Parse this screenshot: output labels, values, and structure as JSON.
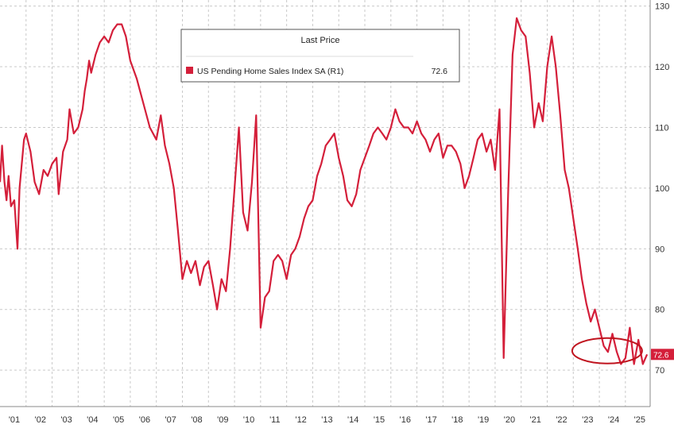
{
  "chart_data": {
    "type": "line",
    "legend": {
      "title": "Last Price",
      "placement": "top-center",
      "entries": [
        {
          "name": "US Pending Home Sales Index SA  (R1)",
          "value": "72.6",
          "color": "#d41f3a"
        }
      ]
    },
    "x_ticks": [
      "'01",
      "'02",
      "'03",
      "'04",
      "'05",
      "'06",
      "'07",
      "'08",
      "'09",
      "'10",
      "'11",
      "'12",
      "'13",
      "'14",
      "'15",
      "'16",
      "'17",
      "'18",
      "'19",
      "'20",
      "'21",
      "'22",
      "'23",
      "'24",
      "'25"
    ],
    "xlim": [
      2001.0,
      2025.95
    ],
    "y_ticks": [
      "70",
      "80",
      "90",
      "100",
      "110",
      "120",
      "130"
    ],
    "ylim": [
      64,
      131
    ],
    "y_axis_side": "right",
    "grid": true,
    "last_value_label": "72.6",
    "highlight": "ellipse around 2023-2025 lows",
    "series": [
      {
        "name": "US Pending Home Sales Index SA  (R1)",
        "color": "#d41f3a",
        "points": [
          [
            2001.0,
            101.0
          ],
          [
            2001.08,
            107.0
          ],
          [
            2001.17,
            101.0
          ],
          [
            2001.25,
            98.0
          ],
          [
            2001.33,
            102.0
          ],
          [
            2001.42,
            97.0
          ],
          [
            2001.55,
            98.0
          ],
          [
            2001.67,
            90.0
          ],
          [
            2001.75,
            100.0
          ],
          [
            2001.92,
            108.0
          ],
          [
            2002.0,
            109.0
          ],
          [
            2002.17,
            106.0
          ],
          [
            2002.33,
            101.0
          ],
          [
            2002.5,
            99.0
          ],
          [
            2002.67,
            103.0
          ],
          [
            2002.83,
            102.0
          ],
          [
            2003.0,
            104.0
          ],
          [
            2003.17,
            105.0
          ],
          [
            2003.25,
            99.0
          ],
          [
            2003.42,
            106.0
          ],
          [
            2003.58,
            108.0
          ],
          [
            2003.67,
            113.0
          ],
          [
            2003.83,
            109.0
          ],
          [
            2004.0,
            110.0
          ],
          [
            2004.17,
            113.0
          ],
          [
            2004.25,
            116.0
          ],
          [
            2004.33,
            118.0
          ],
          [
            2004.42,
            121.0
          ],
          [
            2004.5,
            119.0
          ],
          [
            2004.67,
            122.0
          ],
          [
            2004.83,
            124.0
          ],
          [
            2005.0,
            125.0
          ],
          [
            2005.17,
            124.0
          ],
          [
            2005.33,
            126.0
          ],
          [
            2005.5,
            127.0
          ],
          [
            2005.67,
            127.0
          ],
          [
            2005.83,
            125.0
          ],
          [
            2006.0,
            121.0
          ],
          [
            2006.25,
            118.0
          ],
          [
            2006.5,
            114.0
          ],
          [
            2006.75,
            110.0
          ],
          [
            2007.0,
            108.0
          ],
          [
            2007.17,
            112.0
          ],
          [
            2007.33,
            107.0
          ],
          [
            2007.5,
            104.0
          ],
          [
            2007.67,
            100.0
          ],
          [
            2007.83,
            93.0
          ],
          [
            2008.0,
            85.0
          ],
          [
            2008.17,
            88.0
          ],
          [
            2008.33,
            86.0
          ],
          [
            2008.5,
            88.0
          ],
          [
            2008.67,
            84.0
          ],
          [
            2008.83,
            87.0
          ],
          [
            2009.0,
            88.0
          ],
          [
            2009.17,
            84.0
          ],
          [
            2009.33,
            80.0
          ],
          [
            2009.5,
            85.0
          ],
          [
            2009.67,
            83.0
          ],
          [
            2009.83,
            90.0
          ],
          [
            2010.0,
            100.0
          ],
          [
            2010.17,
            110.0
          ],
          [
            2010.33,
            96.0
          ],
          [
            2010.5,
            93.0
          ],
          [
            2010.67,
            101.0
          ],
          [
            2010.83,
            112.0
          ],
          [
            2011.0,
            77.0
          ],
          [
            2011.17,
            82.0
          ],
          [
            2011.33,
            83.0
          ],
          [
            2011.5,
            88.0
          ],
          [
            2011.67,
            89.0
          ],
          [
            2011.83,
            88.0
          ],
          [
            2012.0,
            85.0
          ],
          [
            2012.17,
            89.0
          ],
          [
            2012.33,
            90.0
          ],
          [
            2012.5,
            92.0
          ],
          [
            2012.67,
            95.0
          ],
          [
            2012.83,
            97.0
          ],
          [
            2013.0,
            98.0
          ],
          [
            2013.17,
            102.0
          ],
          [
            2013.33,
            104.0
          ],
          [
            2013.5,
            107.0
          ],
          [
            2013.67,
            108.0
          ],
          [
            2013.83,
            109.0
          ],
          [
            2014.0,
            105.0
          ],
          [
            2014.17,
            102.0
          ],
          [
            2014.33,
            98.0
          ],
          [
            2014.5,
            97.0
          ],
          [
            2014.67,
            99.0
          ],
          [
            2014.83,
            103.0
          ],
          [
            2015.0,
            105.0
          ],
          [
            2015.17,
            107.0
          ],
          [
            2015.33,
            109.0
          ],
          [
            2015.5,
            110.0
          ],
          [
            2015.67,
            109.0
          ],
          [
            2015.83,
            108.0
          ],
          [
            2016.0,
            110.0
          ],
          [
            2016.17,
            113.0
          ],
          [
            2016.33,
            111.0
          ],
          [
            2016.5,
            110.0
          ],
          [
            2016.67,
            110.0
          ],
          [
            2016.83,
            109.0
          ],
          [
            2017.0,
            111.0
          ],
          [
            2017.17,
            109.0
          ],
          [
            2017.33,
            108.0
          ],
          [
            2017.5,
            106.0
          ],
          [
            2017.67,
            108.0
          ],
          [
            2017.83,
            109.0
          ],
          [
            2018.0,
            105.0
          ],
          [
            2018.17,
            107.0
          ],
          [
            2018.33,
            107.0
          ],
          [
            2018.5,
            106.0
          ],
          [
            2018.67,
            104.0
          ],
          [
            2018.83,
            100.0
          ],
          [
            2019.0,
            102.0
          ],
          [
            2019.17,
            105.0
          ],
          [
            2019.33,
            108.0
          ],
          [
            2019.5,
            109.0
          ],
          [
            2019.67,
            106.0
          ],
          [
            2019.83,
            108.0
          ],
          [
            2020.0,
            103.0
          ],
          [
            2020.17,
            113.0
          ],
          [
            2020.33,
            72.0
          ],
          [
            2020.5,
            99.0
          ],
          [
            2020.67,
            122.0
          ],
          [
            2020.83,
            128.0
          ],
          [
            2021.0,
            126.0
          ],
          [
            2021.17,
            125.0
          ],
          [
            2021.33,
            119.0
          ],
          [
            2021.5,
            110.0
          ],
          [
            2021.67,
            114.0
          ],
          [
            2021.83,
            111.0
          ],
          [
            2022.0,
            120.0
          ],
          [
            2022.17,
            125.0
          ],
          [
            2022.33,
            120.0
          ],
          [
            2022.5,
            112.0
          ],
          [
            2022.67,
            103.0
          ],
          [
            2022.83,
            100.0
          ],
          [
            2023.0,
            95.0
          ],
          [
            2023.17,
            90.0
          ],
          [
            2023.33,
            85.0
          ],
          [
            2023.5,
            81.0
          ],
          [
            2023.67,
            78.0
          ],
          [
            2023.83,
            80.0
          ],
          [
            2024.0,
            77.0
          ],
          [
            2024.17,
            74.0
          ],
          [
            2024.33,
            73.0
          ],
          [
            2024.5,
            76.0
          ],
          [
            2024.67,
            73.0
          ],
          [
            2024.83,
            71.0
          ],
          [
            2025.0,
            72.0
          ],
          [
            2025.17,
            77.0
          ],
          [
            2025.33,
            71.0
          ],
          [
            2025.5,
            75.0
          ],
          [
            2025.67,
            71.0
          ],
          [
            2025.83,
            72.6
          ]
        ]
      }
    ]
  }
}
